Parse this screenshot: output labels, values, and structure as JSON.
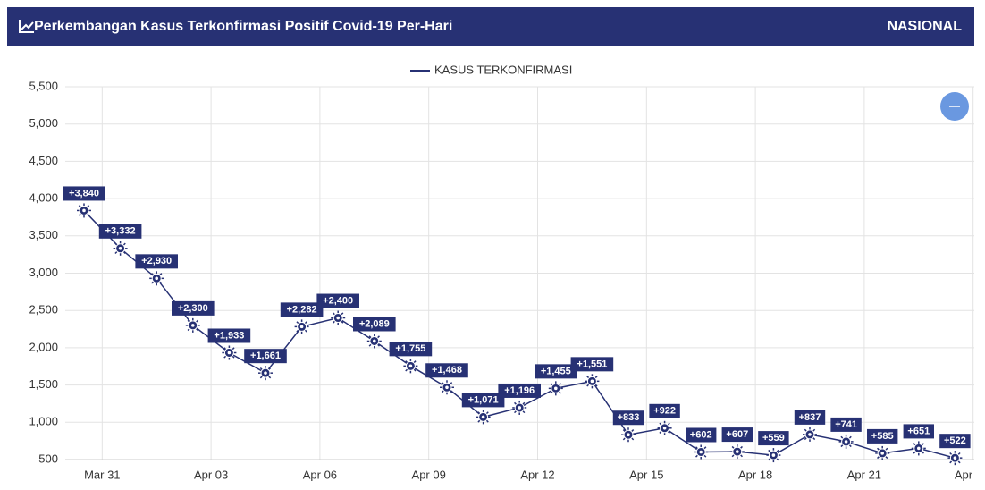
{
  "header": {
    "title": "Perkembangan Kasus Terkonfirmasi Positif Covid-19 Per-Hari",
    "region": "NASIONAL"
  },
  "chart_data": {
    "type": "line",
    "categories": [
      "Mar 31",
      null,
      null,
      "Apr 03",
      null,
      null,
      "Apr 06",
      null,
      null,
      "Apr 09",
      null,
      null,
      "Apr 12",
      null,
      null,
      "Apr 15",
      null,
      null,
      "Apr 18",
      null,
      null,
      "Apr 21",
      null,
      null,
      "Apr"
    ],
    "series": [
      {
        "name": "KASUS TERKONFIRMASI",
        "color": "#273174",
        "values": [
          3840,
          3332,
          2930,
          2300,
          1933,
          1661,
          2282,
          2400,
          2089,
          1755,
          1468,
          1071,
          1196,
          1455,
          1551,
          833,
          922,
          602,
          607,
          559,
          837,
          741,
          585,
          651,
          522
        ],
        "value_labels": [
          "+3,840",
          "+3,332",
          "+2,930",
          "+2,300",
          "+1,933",
          "+1,661",
          "+2,282",
          "+2,400",
          "+2,089",
          "+1,755",
          "+1,468",
          "+1,071",
          "+1,196",
          "+1,455",
          "+1,551",
          "+833",
          "+922",
          "+602",
          "+607",
          "+559",
          "+837",
          "+741",
          "+585",
          "+651",
          "+522"
        ]
      }
    ],
    "ylim": [
      500,
      5500
    ],
    "yticks": [
      {
        "value": 500,
        "label": "500"
      },
      {
        "value": 1000,
        "label": "1,000"
      },
      {
        "value": 1500,
        "label": "1,500"
      },
      {
        "value": 2000,
        "label": "2,000"
      },
      {
        "value": 2500,
        "label": "2,500"
      },
      {
        "value": 3000,
        "label": "3,000"
      },
      {
        "value": 3500,
        "label": "3,500"
      },
      {
        "value": 4000,
        "label": "4,000"
      },
      {
        "value": 4500,
        "label": "4,500"
      },
      {
        "value": 5000,
        "label": "5,000"
      },
      {
        "value": 5500,
        "label": "5,500"
      }
    ],
    "grid": true,
    "legend": "top"
  }
}
